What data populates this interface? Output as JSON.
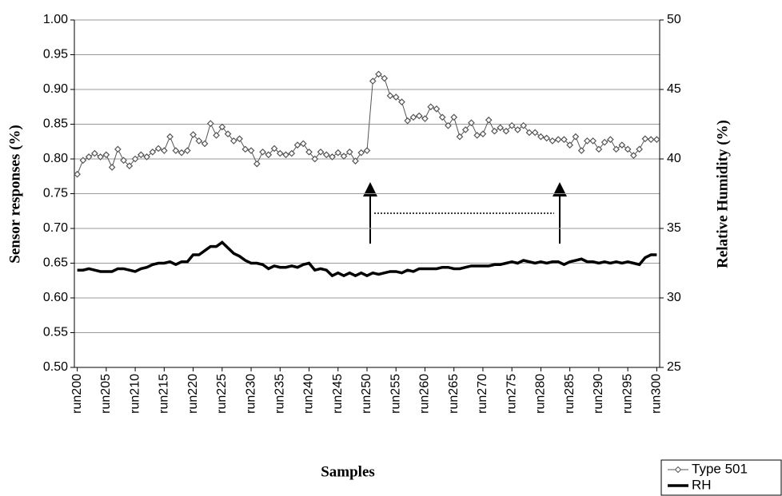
{
  "chart_data": {
    "type": "line",
    "x_label": "Samples",
    "y_label": "Sensor responses (%)",
    "y2_label": "Relative Humidity (%)",
    "categories": [
      "run200",
      null,
      null,
      null,
      null,
      "run205",
      null,
      null,
      null,
      null,
      "run210",
      null,
      null,
      null,
      null,
      "run215",
      null,
      null,
      null,
      null,
      "run220",
      null,
      null,
      null,
      null,
      "run225",
      null,
      null,
      null,
      null,
      "run230",
      null,
      null,
      null,
      null,
      "run235",
      null,
      null,
      null,
      null,
      "run240",
      null,
      null,
      null,
      null,
      "run245",
      null,
      null,
      null,
      null,
      "run250",
      null,
      null,
      null,
      null,
      "run255",
      null,
      null,
      null,
      null,
      "run260",
      null,
      null,
      null,
      null,
      "run265",
      null,
      null,
      null,
      null,
      "run270",
      null,
      null,
      null,
      null,
      "run275",
      null,
      null,
      null,
      null,
      "run280",
      null,
      null,
      null,
      null,
      "run285",
      null,
      null,
      null,
      null,
      "run290",
      null,
      null,
      null,
      null,
      "run295",
      null,
      null,
      null,
      null,
      "run300"
    ],
    "series": [
      {
        "name": "Type 501",
        "color": "#555555",
        "marker": "diamond",
        "values": [
          0.778,
          0.798,
          0.803,
          0.808,
          0.803,
          0.806,
          0.788,
          0.814,
          0.798,
          0.79,
          0.8,
          0.806,
          0.803,
          0.81,
          0.815,
          0.812,
          0.832,
          0.812,
          0.809,
          0.812,
          0.835,
          0.826,
          0.822,
          0.851,
          0.834,
          0.846,
          0.836,
          0.826,
          0.829,
          0.814,
          0.812,
          0.793,
          0.81,
          0.806,
          0.815,
          0.808,
          0.806,
          0.808,
          0.82,
          0.822,
          0.81,
          0.8,
          0.81,
          0.806,
          0.803,
          0.809,
          0.804,
          0.81,
          0.797,
          0.809,
          0.812,
          0.912,
          0.922,
          0.916,
          0.891,
          0.889,
          0.882,
          0.855,
          0.86,
          0.862,
          0.858,
          0.875,
          0.872,
          0.86,
          0.848,
          0.86,
          0.832,
          0.842,
          0.852,
          0.834,
          0.836,
          0.856,
          0.84,
          0.845,
          0.84,
          0.848,
          0.842,
          0.848,
          0.838,
          0.838,
          0.832,
          0.83,
          0.826,
          0.828,
          0.828,
          0.82,
          0.832,
          0.812,
          0.826,
          0.826,
          0.814,
          0.824,
          0.828,
          0.814,
          0.82,
          0.814,
          0.805,
          0.814,
          0.829,
          0.828,
          0.828
        ]
      },
      {
        "name": "RH",
        "color": "#000000",
        "axis": "y2",
        "values": [
          32.0,
          32.0,
          32.1,
          32.0,
          31.9,
          31.9,
          31.9,
          32.1,
          32.1,
          32.0,
          31.9,
          32.1,
          32.2,
          32.4,
          32.5,
          32.5,
          32.6,
          32.4,
          32.6,
          32.6,
          33.1,
          33.1,
          33.4,
          33.7,
          33.7,
          34.0,
          33.6,
          33.2,
          33.0,
          32.7,
          32.5,
          32.5,
          32.4,
          32.1,
          32.3,
          32.2,
          32.2,
          32.3,
          32.2,
          32.4,
          32.5,
          32.0,
          32.1,
          32.0,
          31.6,
          31.8,
          31.6,
          31.8,
          31.6,
          31.8,
          31.6,
          31.8,
          31.7,
          31.8,
          31.9,
          31.9,
          31.8,
          32.0,
          31.9,
          32.1,
          32.1,
          32.1,
          32.1,
          32.2,
          32.2,
          32.1,
          32.1,
          32.2,
          32.3,
          32.3,
          32.3,
          32.3,
          32.4,
          32.4,
          32.5,
          32.6,
          32.5,
          32.7,
          32.6,
          32.5,
          32.6,
          32.5,
          32.6,
          32.6,
          32.4,
          32.6,
          32.7,
          32.8,
          32.6,
          32.6,
          32.5,
          32.6,
          32.5,
          32.6,
          32.5,
          32.6,
          32.5,
          32.4,
          32.9,
          33.1,
          33.1
        ]
      }
    ],
    "ylim": [
      0.5,
      1.0
    ],
    "yticks": [
      {
        "value": 0.5,
        "label": "0.50"
      },
      {
        "value": 0.55,
        "label": "0.55"
      },
      {
        "value": 0.6,
        "label": "0.60"
      },
      {
        "value": 0.65,
        "label": "0.65"
      },
      {
        "value": 0.7,
        "label": "0.70"
      },
      {
        "value": 0.75,
        "label": "0.75"
      },
      {
        "value": 0.8,
        "label": "0.80"
      },
      {
        "value": 0.85,
        "label": "0.85"
      },
      {
        "value": 0.9,
        "label": "0.90"
      },
      {
        "value": 0.95,
        "label": "0.95"
      },
      {
        "value": 1.0,
        "label": "1.00"
      }
    ],
    "y2lim": [
      25,
      50
    ],
    "y2ticks": [
      25,
      30,
      35,
      40,
      45,
      50
    ],
    "grid": true,
    "legend": "bottom-right"
  }
}
